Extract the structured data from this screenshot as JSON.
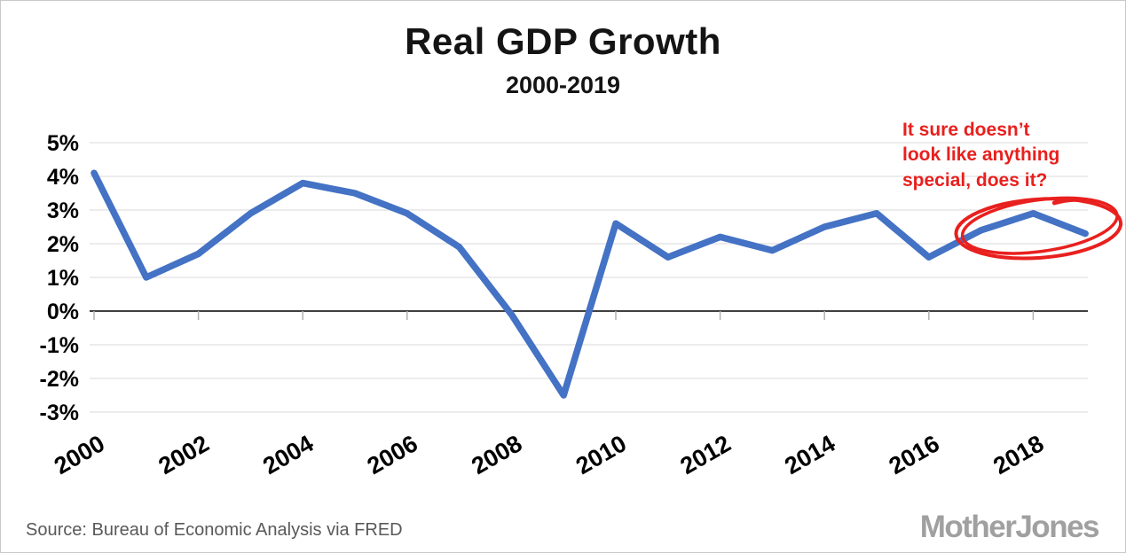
{
  "title": "Real GDP Growth",
  "subtitle": "2000-2019",
  "annotation": {
    "text": "It sure doesn’t\nlook like anything\nspecial, does it?",
    "color": "#e8201e"
  },
  "source": "Source: Bureau of Economic Analysis via FRED",
  "logo": "MotherJones",
  "chart_data": {
    "type": "line",
    "title": "Real GDP Growth",
    "subtitle": "2000-2019",
    "x": [
      2000,
      2001,
      2002,
      2003,
      2004,
      2005,
      2006,
      2007,
      2008,
      2009,
      2010,
      2011,
      2012,
      2013,
      2014,
      2015,
      2016,
      2017,
      2018,
      2019
    ],
    "series": [
      {
        "name": "Real GDP Growth (%)",
        "values": [
          4.1,
          1.0,
          1.7,
          2.9,
          3.8,
          3.5,
          2.9,
          1.9,
          -0.1,
          -2.5,
          2.6,
          1.6,
          2.2,
          1.8,
          2.5,
          2.9,
          1.6,
          2.4,
          2.9,
          2.3
        ]
      }
    ],
    "line_color": "#4472c4",
    "ylim": [
      -3,
      5
    ],
    "yticks": [
      5,
      4,
      3,
      2,
      1,
      0,
      -1,
      -2,
      -3
    ],
    "ytick_labels": [
      "5%",
      "4%",
      "3%",
      "2%",
      "1%",
      "0%",
      "-1%",
      "-2%",
      "-3%"
    ],
    "xticks": [
      2000,
      2002,
      2004,
      2006,
      2008,
      2010,
      2012,
      2014,
      2016,
      2018
    ],
    "grid": "horizontal",
    "legend": "none",
    "circle_annotation": {
      "center_year": 2018.1,
      "center_value": 2.45,
      "color": "#e8201e"
    }
  }
}
